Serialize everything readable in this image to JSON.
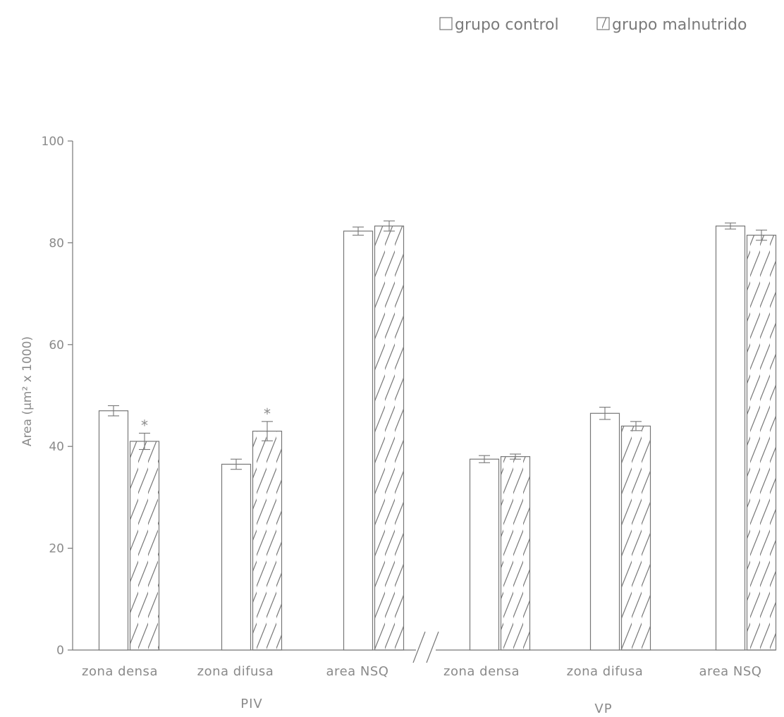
{
  "chart_data": {
    "type": "bar",
    "ylabel": "Area (µm² x 1000)",
    "ylim": [
      0,
      100
    ],
    "yticks": [
      0,
      20,
      40,
      60,
      80,
      100
    ],
    "groups": [
      {
        "label": "PIV",
        "categories": [
          "zona densa",
          "zona difusa",
          "area NSQ"
        ]
      },
      {
        "label": "VP",
        "categories": [
          "zona densa",
          "zona difusa",
          "area NSQ"
        ]
      }
    ],
    "categories": [
      "zona densa",
      "zona difusa",
      "area NSQ",
      "zona densa",
      "zona difusa",
      "area NSQ"
    ],
    "series": [
      {
        "name": "grupo control",
        "pattern": "blank",
        "values": [
          47.0,
          36.5,
          82.3,
          37.5,
          46.5,
          83.3
        ],
        "errors": [
          1.0,
          1.0,
          0.8,
          0.7,
          1.2,
          0.6
        ],
        "significance": [
          "",
          "",
          "",
          "",
          "",
          ""
        ]
      },
      {
        "name": "grupo malnutrido",
        "pattern": "hatched",
        "values": [
          41.0,
          43.0,
          83.3,
          38.0,
          44.0,
          81.5
        ],
        "errors": [
          1.6,
          1.9,
          1.0,
          0.5,
          0.9,
          1.0
        ],
        "significance": [
          "*",
          "*",
          "",
          "",
          "",
          ""
        ]
      }
    ],
    "legend_position": "top-right",
    "axis_break": "//",
    "colors": {
      "stroke": "#777777",
      "text": "#8a8a8a"
    }
  }
}
